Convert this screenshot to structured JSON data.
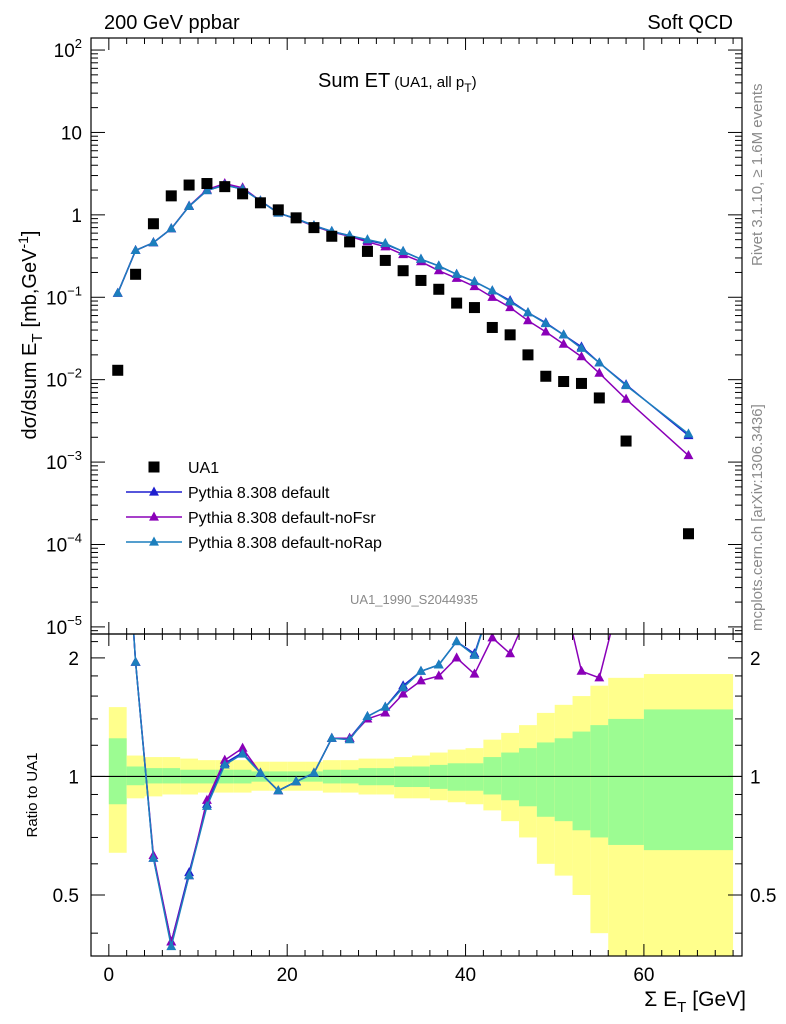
{
  "header": {
    "left": "200 GeV ppbar",
    "right": "Soft QCD"
  },
  "side": {
    "top": "Rivet 3.1.10, ≥ 1.6M events",
    "bottom": "mcplots.cern.ch [arXiv:1306.3436]"
  },
  "chart_data": {
    "type": "scatter",
    "title_main": "Sum ET",
    "title_sub_prefix": "(UA1, all p",
    "title_sub_index": "T",
    "title_sub_suffix": ")",
    "analysis_tag": "UA1_1990_S2044935",
    "ylabel_main": "dσ/dsum E",
    "ylabel_index": "T",
    "ylabel_units_prefix": "[mb,GeV",
    "ylabel_units_exp": "-1",
    "ylabel_units_suffix": "]",
    "xlabel_main": "Σ E",
    "xlabel_index": "T",
    "xlabel_units": "[GeV]",
    "ratio_ylabel": "Ratio to UA1",
    "yscale": "log",
    "xlim": [
      -2,
      71
    ],
    "ylim": [
      8.2e-06,
      140
    ],
    "ratio_ylim": [
      0.35,
      2.3
    ],
    "x_ticks": [
      "0",
      "20",
      "40",
      "60"
    ],
    "y_ticks": [
      {
        "base": "10",
        "exp": "2"
      },
      {
        "base": "10",
        "exp": ""
      },
      {
        "base": "1",
        "exp": ""
      },
      {
        "base": "10",
        "exp": "−1"
      },
      {
        "base": "10",
        "exp": "−2"
      },
      {
        "base": "10",
        "exp": "−3"
      },
      {
        "base": "10",
        "exp": "−4"
      },
      {
        "base": "10",
        "exp": "−5"
      }
    ],
    "ratio_ticks": [
      "0.5",
      "1",
      "2"
    ],
    "legend_position": "lower-left",
    "data": {
      "name": "UA1",
      "x": [
        1,
        3,
        5,
        7,
        9,
        11,
        13,
        15,
        17,
        19,
        21,
        23,
        25,
        27,
        29,
        31,
        33,
        35,
        37,
        39,
        41,
        43,
        45,
        47,
        49,
        51,
        53,
        55,
        58,
        65
      ],
      "y": [
        0.013,
        0.19,
        0.78,
        1.7,
        2.3,
        2.4,
        2.2,
        1.8,
        1.4,
        1.15,
        0.92,
        0.7,
        0.55,
        0.47,
        0.36,
        0.28,
        0.21,
        0.16,
        0.125,
        0.085,
        0.075,
        0.043,
        0.035,
        0.02,
        0.011,
        0.0095,
        0.009,
        0.006,
        0.0018,
        0.000135
      ]
    },
    "series": [
      {
        "name": "Pythia 8.308 default",
        "color": "#1f1fcf",
        "x": [
          1,
          3,
          5,
          7,
          9,
          11,
          13,
          15,
          17,
          19,
          21,
          23,
          25,
          27,
          29,
          31,
          33,
          35,
          37,
          39,
          41,
          43,
          45,
          47,
          49,
          51,
          53,
          55,
          58,
          65
        ],
        "y": [
          0.112,
          0.37,
          0.46,
          0.68,
          1.27,
          1.97,
          2.3,
          2.05,
          1.48,
          1.05,
          0.9,
          0.74,
          0.63,
          0.56,
          0.49,
          0.44,
          0.36,
          0.29,
          0.24,
          0.19,
          0.155,
          0.12,
          0.091,
          0.065,
          0.049,
          0.035,
          0.025,
          0.016,
          0.0087,
          0.0021
        ],
        "ratio": [
          9.5,
          1.95,
          0.62,
          0.38,
          0.57,
          0.85,
          1.08,
          1.15,
          1.02,
          0.92,
          0.97,
          1.02,
          1.25,
          1.25,
          1.42,
          1.5,
          1.7,
          1.85,
          1.92,
          2.2,
          2.05,
          2.8,
          2.55,
          3.2,
          4.5,
          3.7,
          2.8,
          2.7,
          4.8,
          15
        ]
      },
      {
        "name": "Pythia 8.308 default-noFsr",
        "color": "#8a00b8",
        "x": [
          1,
          3,
          5,
          7,
          9,
          11,
          13,
          15,
          17,
          19,
          21,
          23,
          25,
          27,
          29,
          31,
          33,
          35,
          37,
          39,
          41,
          43,
          45,
          47,
          49,
          51,
          53,
          55,
          58,
          65
        ],
        "y": [
          0.112,
          0.37,
          0.46,
          0.68,
          1.28,
          2.02,
          2.4,
          2.13,
          1.48,
          1.06,
          0.89,
          0.73,
          0.62,
          0.55,
          0.47,
          0.41,
          0.33,
          0.27,
          0.21,
          0.17,
          0.135,
          0.1,
          0.075,
          0.052,
          0.038,
          0.027,
          0.019,
          0.012,
          0.0058,
          0.0012
        ],
        "ratio": [
          9.5,
          1.95,
          0.63,
          0.38,
          0.56,
          0.87,
          1.1,
          1.18,
          1.02,
          0.92,
          0.97,
          1.02,
          1.25,
          1.25,
          1.4,
          1.45,
          1.62,
          1.75,
          1.8,
          2.0,
          1.82,
          2.25,
          2.05,
          2.6,
          3.4,
          2.9,
          1.85,
          1.78,
          3.3,
          9
        ]
      },
      {
        "name": "Pythia 8.308 default-noRap",
        "color": "#1c7fbd",
        "x": [
          1,
          3,
          5,
          7,
          9,
          11,
          13,
          15,
          17,
          19,
          21,
          23,
          25,
          27,
          29,
          31,
          33,
          35,
          37,
          39,
          41,
          43,
          45,
          47,
          49,
          51,
          53,
          55,
          58,
          65
        ],
        "y": [
          0.112,
          0.37,
          0.46,
          0.68,
          1.27,
          1.97,
          2.3,
          2.05,
          1.48,
          1.05,
          0.9,
          0.74,
          0.63,
          0.56,
          0.5,
          0.45,
          0.36,
          0.29,
          0.24,
          0.19,
          0.155,
          0.12,
          0.088,
          0.065,
          0.048,
          0.035,
          0.024,
          0.016,
          0.0085,
          0.0022
        ],
        "ratio": [
          9.5,
          1.95,
          0.62,
          0.37,
          0.56,
          0.84,
          1.07,
          1.14,
          1.02,
          0.92,
          0.97,
          1.02,
          1.25,
          1.24,
          1.42,
          1.5,
          1.68,
          1.85,
          1.92,
          2.2,
          2.03,
          2.8,
          2.5,
          3.2,
          4.4,
          3.7,
          2.7,
          2.7,
          4.7,
          16
        ]
      }
    ],
    "uncertainty_bands": {
      "x_edges": [
        0,
        2,
        4,
        6,
        8,
        10,
        12,
        14,
        16,
        18,
        20,
        22,
        24,
        26,
        28,
        30,
        32,
        34,
        36,
        38,
        40,
        42,
        44,
        46,
        48,
        50,
        52,
        54,
        56,
        60,
        70
      ],
      "stat_lo": [
        0.85,
        0.95,
        0.96,
        0.96,
        0.96,
        0.96,
        0.96,
        0.96,
        0.97,
        0.97,
        0.97,
        0.97,
        0.96,
        0.96,
        0.95,
        0.95,
        0.94,
        0.94,
        0.93,
        0.92,
        0.92,
        0.9,
        0.87,
        0.84,
        0.79,
        0.77,
        0.73,
        0.7,
        0.67,
        0.65
      ],
      "stat_hi": [
        1.25,
        1.06,
        1.05,
        1.05,
        1.04,
        1.04,
        1.04,
        1.04,
        1.03,
        1.03,
        1.03,
        1.03,
        1.04,
        1.04,
        1.05,
        1.05,
        1.06,
        1.06,
        1.07,
        1.08,
        1.08,
        1.12,
        1.15,
        1.18,
        1.22,
        1.25,
        1.3,
        1.35,
        1.4,
        1.48
      ],
      "tot_lo": [
        0.64,
        0.88,
        0.89,
        0.9,
        0.9,
        0.91,
        0.91,
        0.91,
        0.92,
        0.92,
        0.92,
        0.92,
        0.91,
        0.91,
        0.9,
        0.9,
        0.88,
        0.88,
        0.87,
        0.86,
        0.85,
        0.82,
        0.77,
        0.7,
        0.6,
        0.56,
        0.5,
        0.4,
        0.35,
        0.3
      ],
      "tot_hi": [
        1.5,
        1.13,
        1.12,
        1.12,
        1.11,
        1.1,
        1.1,
        1.1,
        1.09,
        1.09,
        1.09,
        1.09,
        1.1,
        1.1,
        1.11,
        1.11,
        1.12,
        1.13,
        1.15,
        1.17,
        1.18,
        1.24,
        1.29,
        1.35,
        1.45,
        1.52,
        1.6,
        1.7,
        1.78,
        1.82
      ]
    }
  }
}
